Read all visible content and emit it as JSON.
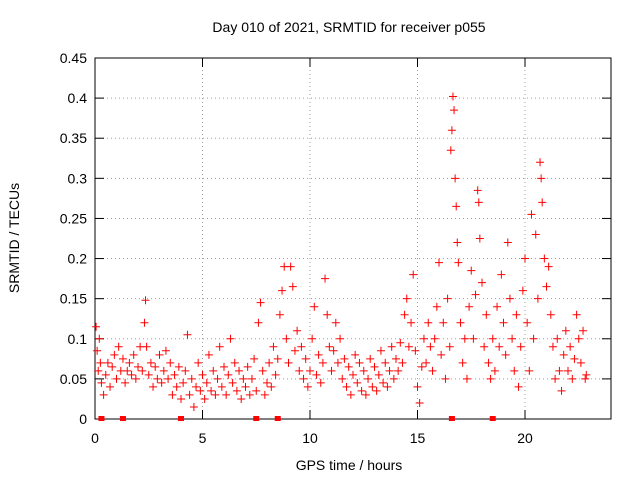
{
  "chart_data": {
    "type": "scatter",
    "title": "Day 010 of 2021, SRMTID for receiver p055",
    "xlabel": "GPS time / hours",
    "ylabel": "SRMTID / TECUs",
    "xlim": [
      0,
      24
    ],
    "ylim": [
      0,
      0.45
    ],
    "grid": true,
    "marker": "+",
    "color": "#ff0000",
    "x_ticks": [
      {
        "value": 0,
        "label": "0"
      },
      {
        "value": 5,
        "label": "5"
      },
      {
        "value": 10,
        "label": "10"
      },
      {
        "value": 15,
        "label": "15"
      },
      {
        "value": 20,
        "label": "20"
      }
    ],
    "y_ticks": [
      {
        "value": 0,
        "label": "0"
      },
      {
        "value": 0.05,
        "label": "0.05"
      },
      {
        "value": 0.1,
        "label": "0.1"
      },
      {
        "value": 0.15,
        "label": "0.15"
      },
      {
        "value": 0.2,
        "label": "0.2"
      },
      {
        "value": 0.25,
        "label": "0.25"
      },
      {
        "value": 0.3,
        "label": "0.3"
      },
      {
        "value": 0.35,
        "label": "0.35"
      },
      {
        "value": 0.4,
        "label": "0.4"
      },
      {
        "value": 0.45,
        "label": "0.45"
      }
    ],
    "zero_markers_x": [
      0.3,
      1.3,
      4.0,
      7.5,
      8.5,
      16.6,
      18.5
    ],
    "series": [
      {
        "name": "SRMTID",
        "points": [
          [
            0.05,
            0.115
          ],
          [
            0.1,
            0.085
          ],
          [
            0.15,
            0.06
          ],
          [
            0.2,
            0.1
          ],
          [
            0.25,
            0.07
          ],
          [
            0.3,
            0.045
          ],
          [
            0.4,
            0.03
          ],
          [
            0.5,
            0.055
          ],
          [
            0.6,
            0.07
          ],
          [
            0.7,
            0.04
          ],
          [
            0.8,
            0.065
          ],
          [
            0.9,
            0.08
          ],
          [
            1.0,
            0.05
          ],
          [
            1.1,
            0.09
          ],
          [
            1.2,
            0.06
          ],
          [
            1.3,
            0.075
          ],
          [
            1.4,
            0.045
          ],
          [
            1.5,
            0.06
          ],
          [
            1.6,
            0.07
          ],
          [
            1.7,
            0.055
          ],
          [
            1.8,
            0.08
          ],
          [
            1.9,
            0.05
          ],
          [
            2.0,
            0.065
          ],
          [
            2.1,
            0.09
          ],
          [
            2.2,
            0.06
          ],
          [
            2.3,
            0.12
          ],
          [
            2.35,
            0.148
          ],
          [
            2.4,
            0.09
          ],
          [
            2.5,
            0.055
          ],
          [
            2.6,
            0.07
          ],
          [
            2.7,
            0.04
          ],
          [
            2.8,
            0.065
          ],
          [
            2.9,
            0.05
          ],
          [
            3.0,
            0.08
          ],
          [
            3.1,
            0.045
          ],
          [
            3.2,
            0.06
          ],
          [
            3.3,
            0.085
          ],
          [
            3.4,
            0.05
          ],
          [
            3.5,
            0.07
          ],
          [
            3.6,
            0.03
          ],
          [
            3.7,
            0.055
          ],
          [
            3.8,
            0.04
          ],
          [
            3.9,
            0.065
          ],
          [
            4.0,
            0.025
          ],
          [
            4.1,
            0.045
          ],
          [
            4.2,
            0.06
          ],
          [
            4.3,
            0.105
          ],
          [
            4.4,
            0.03
          ],
          [
            4.5,
            0.05
          ],
          [
            4.6,
            0.015
          ],
          [
            4.7,
            0.04
          ],
          [
            4.8,
            0.07
          ],
          [
            4.9,
            0.035
          ],
          [
            5.0,
            0.055
          ],
          [
            5.1,
            0.025
          ],
          [
            5.2,
            0.045
          ],
          [
            5.3,
            0.08
          ],
          [
            5.4,
            0.035
          ],
          [
            5.5,
            0.06
          ],
          [
            5.6,
            0.03
          ],
          [
            5.7,
            0.05
          ],
          [
            5.8,
            0.09
          ],
          [
            5.9,
            0.04
          ],
          [
            6.0,
            0.065
          ],
          [
            6.1,
            0.03
          ],
          [
            6.2,
            0.055
          ],
          [
            6.3,
            0.1
          ],
          [
            6.4,
            0.045
          ],
          [
            6.5,
            0.07
          ],
          [
            6.6,
            0.035
          ],
          [
            6.7,
            0.06
          ],
          [
            6.8,
            0.025
          ],
          [
            6.9,
            0.05
          ],
          [
            7.0,
            0.04
          ],
          [
            7.1,
            0.065
          ],
          [
            7.2,
            0.03
          ],
          [
            7.3,
            0.05
          ],
          [
            7.4,
            0.075
          ],
          [
            7.5,
            0.035
          ],
          [
            7.6,
            0.12
          ],
          [
            7.7,
            0.145
          ],
          [
            7.8,
            0.06
          ],
          [
            7.9,
            0.03
          ],
          [
            8.0,
            0.045
          ],
          [
            8.1,
            0.07
          ],
          [
            8.2,
            0.04
          ],
          [
            8.3,
            0.09
          ],
          [
            8.4,
            0.055
          ],
          [
            8.5,
            0.075
          ],
          [
            8.6,
            0.13
          ],
          [
            8.7,
            0.16
          ],
          [
            8.8,
            0.19
          ],
          [
            8.9,
            0.1
          ],
          [
            9.0,
            0.07
          ],
          [
            9.1,
            0.19
          ],
          [
            9.2,
            0.165
          ],
          [
            9.3,
            0.085
          ],
          [
            9.4,
            0.11
          ],
          [
            9.5,
            0.06
          ],
          [
            9.6,
            0.09
          ],
          [
            9.7,
            0.05
          ],
          [
            9.8,
            0.075
          ],
          [
            9.9,
            0.04
          ],
          [
            10.0,
            0.06
          ],
          [
            10.1,
            0.1
          ],
          [
            10.2,
            0.14
          ],
          [
            10.3,
            0.055
          ],
          [
            10.4,
            0.08
          ],
          [
            10.5,
            0.045
          ],
          [
            10.6,
            0.07
          ],
          [
            10.7,
            0.175
          ],
          [
            10.8,
            0.13
          ],
          [
            10.9,
            0.09
          ],
          [
            11.0,
            0.06
          ],
          [
            11.1,
            0.085
          ],
          [
            11.2,
            0.12
          ],
          [
            11.3,
            0.07
          ],
          [
            11.4,
            0.1
          ],
          [
            11.5,
            0.05
          ],
          [
            11.6,
            0.075
          ],
          [
            11.7,
            0.04
          ],
          [
            11.8,
            0.065
          ],
          [
            11.9,
            0.03
          ],
          [
            12.0,
            0.055
          ],
          [
            12.1,
            0.08
          ],
          [
            12.2,
            0.045
          ],
          [
            12.3,
            0.07
          ],
          [
            12.4,
            0.035
          ],
          [
            12.5,
            0.06
          ],
          [
            12.6,
            0.03
          ],
          [
            12.7,
            0.05
          ],
          [
            12.8,
            0.075
          ],
          [
            12.9,
            0.04
          ],
          [
            13.0,
            0.065
          ],
          [
            13.1,
            0.035
          ],
          [
            13.2,
            0.055
          ],
          [
            13.3,
            0.085
          ],
          [
            13.4,
            0.045
          ],
          [
            13.5,
            0.07
          ],
          [
            13.6,
            0.04
          ],
          [
            13.7,
            0.06
          ],
          [
            13.8,
            0.09
          ],
          [
            13.9,
            0.05
          ],
          [
            14.0,
            0.075
          ],
          [
            14.1,
            0.06
          ],
          [
            14.2,
            0.095
          ],
          [
            14.3,
            0.07
          ],
          [
            14.4,
            0.13
          ],
          [
            14.5,
            0.15
          ],
          [
            14.6,
            0.09
          ],
          [
            14.7,
            0.12
          ],
          [
            14.8,
            0.18
          ],
          [
            14.9,
            0.085
          ],
          [
            15.0,
            0.04
          ],
          [
            15.1,
            0.02
          ],
          [
            15.2,
            0.065
          ],
          [
            15.3,
            0.1
          ],
          [
            15.4,
            0.07
          ],
          [
            15.5,
            0.12
          ],
          [
            15.6,
            0.09
          ],
          [
            15.7,
            0.06
          ],
          [
            15.8,
            0.1
          ],
          [
            15.9,
            0.14
          ],
          [
            16.0,
            0.195
          ],
          [
            16.1,
            0.08
          ],
          [
            16.2,
            0.12
          ],
          [
            16.3,
            0.05
          ],
          [
            16.4,
            0.15
          ],
          [
            16.5,
            0.09
          ],
          [
            16.55,
            0.335
          ],
          [
            16.6,
            0.36
          ],
          [
            16.65,
            0.402
          ],
          [
            16.7,
            0.385
          ],
          [
            16.75,
            0.3
          ],
          [
            16.8,
            0.265
          ],
          [
            16.85,
            0.22
          ],
          [
            16.9,
            0.195
          ],
          [
            17.0,
            0.12
          ],
          [
            17.1,
            0.07
          ],
          [
            17.2,
            0.1
          ],
          [
            17.3,
            0.05
          ],
          [
            17.4,
            0.14
          ],
          [
            17.5,
            0.185
          ],
          [
            17.6,
            0.1
          ],
          [
            17.7,
            0.155
          ],
          [
            17.8,
            0.285
          ],
          [
            17.85,
            0.27
          ],
          [
            17.9,
            0.225
          ],
          [
            18.0,
            0.17
          ],
          [
            18.1,
            0.09
          ],
          [
            18.2,
            0.13
          ],
          [
            18.3,
            0.07
          ],
          [
            18.4,
            0.05
          ],
          [
            18.5,
            0.1
          ],
          [
            18.6,
            0.06
          ],
          [
            18.7,
            0.14
          ],
          [
            18.8,
            0.09
          ],
          [
            18.9,
            0.18
          ],
          [
            19.0,
            0.12
          ],
          [
            19.1,
            0.08
          ],
          [
            19.2,
            0.22
          ],
          [
            19.3,
            0.15
          ],
          [
            19.4,
            0.1
          ],
          [
            19.5,
            0.06
          ],
          [
            19.6,
            0.13
          ],
          [
            19.7,
            0.04
          ],
          [
            19.8,
            0.09
          ],
          [
            19.9,
            0.16
          ],
          [
            20.0,
            0.2
          ],
          [
            20.1,
            0.12
          ],
          [
            20.2,
            0.06
          ],
          [
            20.3,
            0.255
          ],
          [
            20.4,
            0.1
          ],
          [
            20.5,
            0.23
          ],
          [
            20.6,
            0.15
          ],
          [
            20.7,
            0.32
          ],
          [
            20.75,
            0.3
          ],
          [
            20.8,
            0.27
          ],
          [
            20.9,
            0.2
          ],
          [
            21.0,
            0.165
          ],
          [
            21.1,
            0.19
          ],
          [
            21.2,
            0.13
          ],
          [
            21.3,
            0.09
          ],
          [
            21.4,
            0.05
          ],
          [
            21.5,
            0.1
          ],
          [
            21.6,
            0.06
          ],
          [
            21.7,
            0.035
          ],
          [
            21.8,
            0.08
          ],
          [
            21.9,
            0.11
          ],
          [
            22.0,
            0.06
          ],
          [
            22.1,
            0.09
          ],
          [
            22.2,
            0.05
          ],
          [
            22.3,
            0.075
          ],
          [
            22.4,
            0.13
          ],
          [
            22.5,
            0.1
          ],
          [
            22.6,
            0.07
          ],
          [
            22.7,
            0.11
          ],
          [
            22.8,
            0.05
          ],
          [
            22.85,
            0.055
          ]
        ]
      }
    ]
  }
}
